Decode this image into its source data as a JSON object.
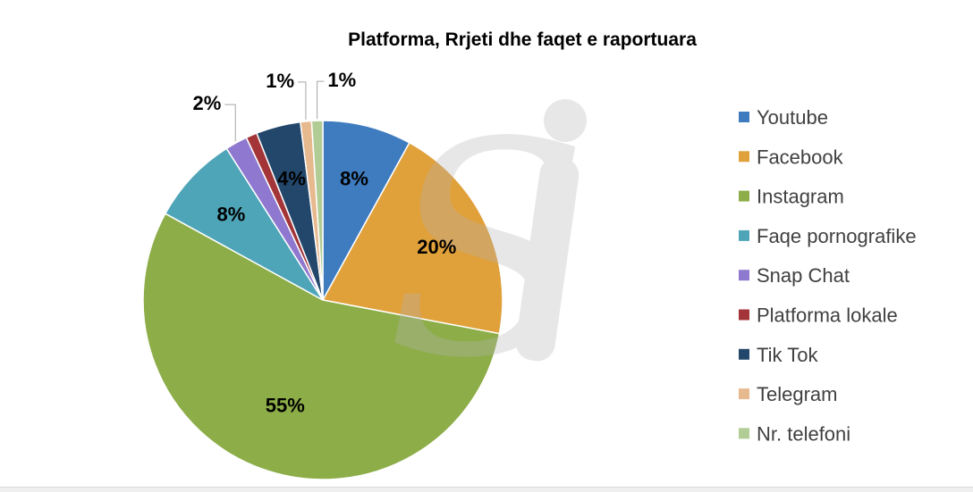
{
  "chart_data": {
    "type": "pie",
    "title": "Platforma, Rrjeti dhe faqet e raportuara",
    "categories": [
      "Youtube",
      "Facebook",
      "Instagram",
      "Faqe pornografike",
      "Snap Chat",
      "Platforma lokale",
      "Tik Tok",
      "Telegram",
      "Nr. telefoni"
    ],
    "values": [
      8,
      20,
      55,
      8,
      2,
      1,
      4,
      1,
      1
    ],
    "labels": [
      "8%",
      "20%",
      "55%",
      "8%",
      "2%",
      "",
      "4%",
      "1%",
      "1%"
    ],
    "colors": [
      "#3f7cbf",
      "#e0a03a",
      "#8cad47",
      "#4fa5b8",
      "#8f78cf",
      "#a33538",
      "#23476b",
      "#e6b98f",
      "#b1cc94"
    ],
    "legend_position": "right",
    "watermark": "Si"
  }
}
